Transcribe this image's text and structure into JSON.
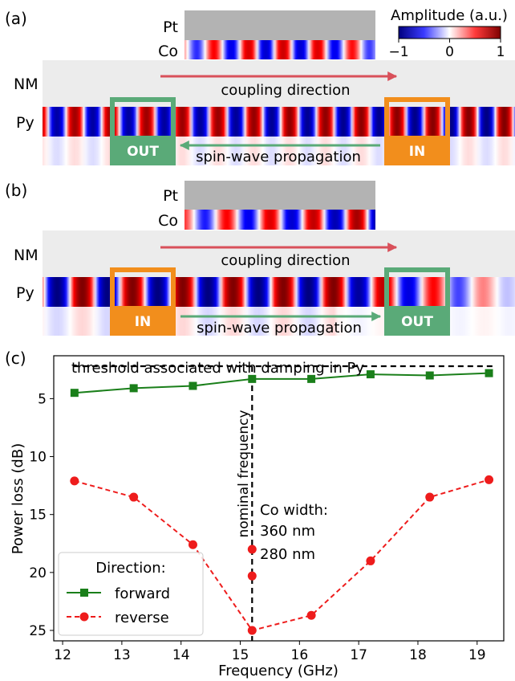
{
  "panel_a": {
    "label": "(a)",
    "pt_label": "Pt",
    "co_label": "Co",
    "nm_label": "NM",
    "py_label": "Py",
    "coupling_text": "coupling direction",
    "propagation_text": "spin-wave propagation",
    "left_box": "OUT",
    "right_box": "IN"
  },
  "panel_b": {
    "label": "(b)",
    "pt_label": "Pt",
    "co_label": "Co",
    "nm_label": "NM",
    "py_label": "Py",
    "coupling_text": "coupling direction",
    "propagation_text": "spin-wave propagation",
    "left_box": "IN",
    "right_box": "OUT"
  },
  "colorbar": {
    "title": "Amplitude (a.u.)",
    "ticks": [
      "−1",
      "0",
      "1"
    ]
  },
  "colors": {
    "in_box": "#f28e1c",
    "out_box": "#5aaa78",
    "coupling_arrow": "#d9505a",
    "propagation_arrow": "#5aaa78",
    "pt_gray": "#b3b3b3",
    "nm_gray": "#ececec",
    "forward": "#1a7f1a",
    "reverse": "#ee1c1c"
  },
  "chart_data": {
    "type": "line",
    "panel_label": "(c)",
    "xlabel": "Frequency (GHz)",
    "ylabel": "Power loss (dB)",
    "xlim": [
      11.85,
      19.45
    ],
    "ylim": [
      25.9,
      1.3
    ],
    "y_inverted": true,
    "xticks": [
      12,
      13,
      14,
      15,
      16,
      17,
      18,
      19
    ],
    "yticks": [
      5,
      10,
      15,
      20,
      25
    ],
    "grid": false,
    "series": [
      {
        "name": "forward",
        "style": "solid",
        "marker": "square",
        "x": [
          12.2,
          13.2,
          14.2,
          15.2,
          16.2,
          17.2,
          18.2,
          19.2
        ],
        "y": [
          4.5,
          4.1,
          3.9,
          3.3,
          3.3,
          2.9,
          3.0,
          2.8
        ]
      },
      {
        "name": "reverse",
        "style": "dashed",
        "marker": "circle",
        "x": [
          12.2,
          13.2,
          14.2,
          15.2,
          16.2,
          17.2,
          18.2,
          19.2
        ],
        "y": [
          12.1,
          13.5,
          17.6,
          25.0,
          23.7,
          19.0,
          13.5,
          12.0
        ]
      }
    ],
    "extra_points": [
      {
        "x": 15.2,
        "y": 18.0,
        "label": "360 nm"
      },
      {
        "x": 15.2,
        "y": 20.3,
        "label": "280 nm"
      }
    ],
    "threshold": {
      "y": 2.2,
      "label": "threshold associated with damping in Py"
    },
    "nominal_frequency": {
      "x": 15.2,
      "label": "nominal frequency"
    },
    "annotation_title": "Co width:",
    "legend": {
      "title": "Direction:",
      "placement": "lower-left"
    }
  }
}
